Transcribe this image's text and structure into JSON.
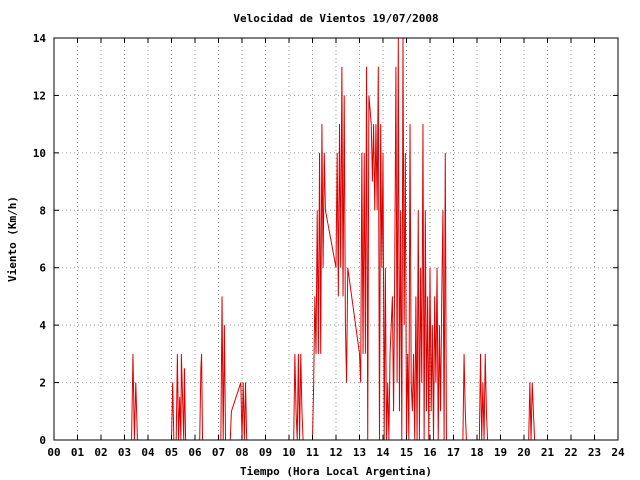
{
  "chart_data": {
    "type": "line",
    "title": "Velocidad de Vientos 19/07/2008",
    "xlabel": "Tiempo (Hora Local Argentina)",
    "ylabel": "Viento (Km/h)",
    "xlim": [
      0,
      24
    ],
    "ylim": [
      0,
      14
    ],
    "x_ticks": [
      0,
      1,
      2,
      3,
      4,
      5,
      6,
      7,
      8,
      9,
      10,
      11,
      12,
      13,
      14,
      15,
      16,
      17,
      18,
      19,
      20,
      21,
      22,
      23,
      24
    ],
    "x_tick_labels": [
      "00",
      "01",
      "02",
      "03",
      "04",
      "05",
      "06",
      "07",
      "08",
      "09",
      "10",
      "11",
      "12",
      "13",
      "14",
      "15",
      "16",
      "17",
      "18",
      "19",
      "20",
      "21",
      "22",
      "23",
      "24"
    ],
    "y_ticks": [
      0,
      2,
      4,
      6,
      8,
      10,
      12,
      14
    ],
    "grid": true,
    "legend": "none",
    "colors": {
      "series": "#dd0000",
      "grid": "#a0a0a0",
      "frame": "#000000"
    },
    "series": [
      {
        "points": [
          [
            0.0,
            0
          ],
          [
            3.3,
            0
          ],
          [
            3.36,
            3
          ],
          [
            3.42,
            0
          ],
          [
            3.48,
            2
          ],
          [
            3.55,
            0
          ],
          [
            3.6,
            0
          ],
          [
            5.0,
            0
          ],
          [
            5.05,
            2
          ],
          [
            5.1,
            0
          ],
          [
            5.2,
            0
          ],
          [
            5.25,
            3
          ],
          [
            5.3,
            0
          ],
          [
            5.35,
            1.5
          ],
          [
            5.4,
            0
          ],
          [
            5.42,
            3
          ],
          [
            5.47,
            1.5
          ],
          [
            5.52,
            0
          ],
          [
            5.55,
            2.5
          ],
          [
            5.6,
            0
          ],
          [
            6.2,
            0
          ],
          [
            6.25,
            2.5
          ],
          [
            6.28,
            3
          ],
          [
            6.32,
            0
          ],
          [
            7.1,
            0
          ],
          [
            7.15,
            5
          ],
          [
            7.2,
            0
          ],
          [
            7.25,
            4
          ],
          [
            7.3,
            0
          ],
          [
            7.5,
            0
          ],
          [
            7.55,
            1
          ],
          [
            7.95,
            2
          ],
          [
            8.0,
            0
          ],
          [
            8.05,
            2
          ],
          [
            8.1,
            0
          ],
          [
            8.15,
            2
          ],
          [
            8.2,
            0
          ],
          [
            10.2,
            0
          ],
          [
            10.25,
            3
          ],
          [
            10.3,
            1
          ],
          [
            10.35,
            0
          ],
          [
            10.4,
            3
          ],
          [
            10.45,
            0
          ],
          [
            10.5,
            3
          ],
          [
            10.55,
            1
          ],
          [
            10.6,
            0
          ],
          [
            11.0,
            0
          ],
          [
            11.05,
            2
          ],
          [
            11.1,
            5
          ],
          [
            11.15,
            3
          ],
          [
            11.2,
            8
          ],
          [
            11.25,
            3
          ],
          [
            11.3,
            10
          ],
          [
            11.35,
            3
          ],
          [
            11.4,
            11
          ],
          [
            11.45,
            6
          ],
          [
            11.5,
            10
          ],
          [
            11.55,
            8
          ],
          [
            12.0,
            6
          ],
          [
            12.05,
            10
          ],
          [
            12.1,
            5
          ],
          [
            12.15,
            11
          ],
          [
            12.2,
            6
          ],
          [
            12.25,
            13
          ],
          [
            12.3,
            5
          ],
          [
            12.35,
            12
          ],
          [
            12.4,
            4
          ],
          [
            12.45,
            2
          ],
          [
            12.5,
            6
          ],
          [
            13.0,
            3
          ],
          [
            13.05,
            2
          ],
          [
            13.1,
            10
          ],
          [
            13.15,
            3
          ],
          [
            13.2,
            10
          ],
          [
            13.25,
            3
          ],
          [
            13.3,
            13
          ],
          [
            13.35,
            0
          ],
          [
            13.4,
            12
          ],
          [
            13.5,
            11
          ],
          [
            13.55,
            9
          ],
          [
            13.6,
            11
          ],
          [
            13.65,
            8
          ],
          [
            13.7,
            11
          ],
          [
            13.75,
            8
          ],
          [
            13.8,
            13
          ],
          [
            13.85,
            0
          ],
          [
            13.9,
            11
          ],
          [
            13.95,
            6
          ],
          [
            14.0,
            10
          ],
          [
            14.05,
            0
          ],
          [
            14.1,
            6
          ],
          [
            14.15,
            0
          ],
          [
            14.2,
            2
          ],
          [
            14.25,
            0
          ],
          [
            14.3,
            3
          ],
          [
            14.35,
            4
          ],
          [
            14.4,
            5
          ],
          [
            14.45,
            1
          ],
          [
            14.5,
            6
          ],
          [
            14.55,
            13
          ],
          [
            14.6,
            2
          ],
          [
            14.65,
            14
          ],
          [
            14.7,
            1
          ],
          [
            14.75,
            8
          ],
          [
            14.8,
            0
          ],
          [
            14.85,
            14
          ],
          [
            14.9,
            4
          ],
          [
            14.95,
            10
          ],
          [
            15.0,
            0
          ],
          [
            15.05,
            3
          ],
          [
            15.1,
            0
          ],
          [
            15.15,
            11
          ],
          [
            15.2,
            2
          ],
          [
            15.25,
            1
          ],
          [
            15.3,
            3
          ],
          [
            15.35,
            0
          ],
          [
            15.4,
            5
          ],
          [
            15.45,
            0
          ],
          [
            15.5,
            8
          ],
          [
            15.55,
            0
          ],
          [
            15.6,
            6
          ],
          [
            15.65,
            2
          ],
          [
            15.7,
            11
          ],
          [
            15.75,
            0
          ],
          [
            15.8,
            8
          ],
          [
            15.85,
            1
          ],
          [
            15.9,
            5
          ],
          [
            15.95,
            0
          ],
          [
            16.0,
            6
          ],
          [
            16.05,
            1
          ],
          [
            16.1,
            4
          ],
          [
            16.15,
            0
          ],
          [
            16.2,
            5
          ],
          [
            16.25,
            2
          ],
          [
            16.3,
            6
          ],
          [
            16.35,
            0
          ],
          [
            16.4,
            4
          ],
          [
            16.45,
            1
          ],
          [
            16.5,
            5
          ],
          [
            16.55,
            8
          ],
          [
            16.6,
            0
          ],
          [
            16.65,
            10
          ],
          [
            16.7,
            0
          ],
          [
            17.4,
            0
          ],
          [
            17.45,
            3
          ],
          [
            17.5,
            1
          ],
          [
            17.55,
            0
          ],
          [
            18.1,
            0
          ],
          [
            18.15,
            3
          ],
          [
            18.2,
            0
          ],
          [
            18.25,
            2
          ],
          [
            18.3,
            0
          ],
          [
            18.35,
            3
          ],
          [
            18.4,
            1
          ],
          [
            18.45,
            0
          ],
          [
            20.2,
            0
          ],
          [
            20.25,
            2
          ],
          [
            20.3,
            0
          ],
          [
            20.35,
            2
          ],
          [
            20.4,
            1
          ],
          [
            20.45,
            0
          ],
          [
            24.0,
            0
          ]
        ]
      }
    ]
  }
}
